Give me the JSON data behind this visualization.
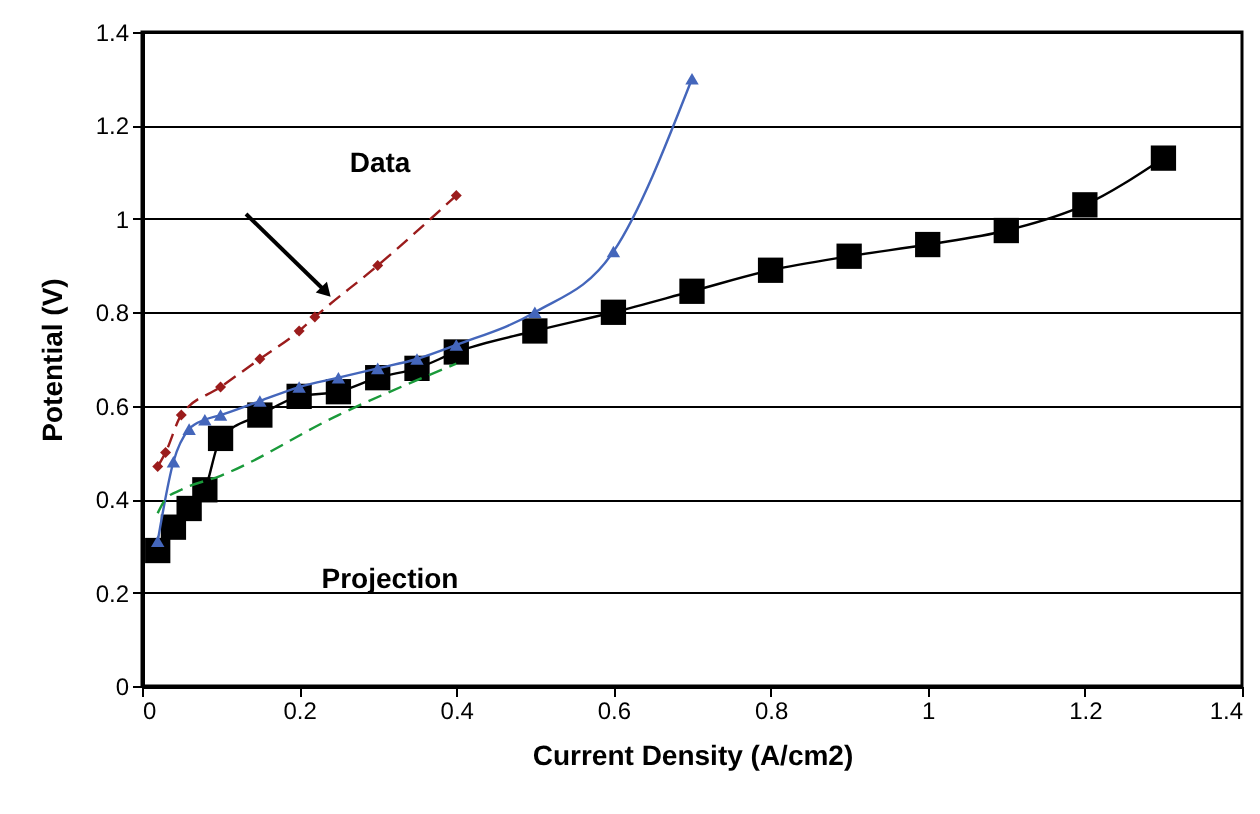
{
  "chart_data": {
    "type": "line",
    "xlabel": "Current Density (A/cm2)",
    "ylabel": "Potential (V)",
    "xlim": [
      0,
      1.4
    ],
    "xticks": [
      0,
      0.2,
      0.4,
      0.6,
      0.8,
      1,
      1.2,
      1.4
    ],
    "ylim": [
      0,
      1.4
    ],
    "yticks": [
      0,
      0.2,
      0.4,
      0.6,
      0.8,
      1,
      1.2,
      1.4
    ],
    "grid": "y",
    "series": [
      {
        "color": "#000000",
        "marker": "square",
        "line_style": "solid",
        "x": [
          0.02,
          0.04,
          0.06,
          0.08,
          0.1,
          0.15,
          0.2,
          0.25,
          0.3,
          0.35,
          0.4,
          0.5,
          0.6,
          0.7,
          0.8,
          0.9,
          1.0,
          1.1,
          1.2,
          1.3
        ],
        "values": [
          0.29,
          0.34,
          0.38,
          0.42,
          0.53,
          0.58,
          0.62,
          0.63,
          0.66,
          0.68,
          0.715,
          0.76,
          0.8,
          0.845,
          0.89,
          0.92,
          0.945,
          0.975,
          1.03,
          1.13
        ]
      },
      {
        "color": "#4466bb",
        "marker": "triangle",
        "line_style": "solid",
        "x": [
          0.02,
          0.04,
          0.06,
          0.08,
          0.1,
          0.15,
          0.2,
          0.25,
          0.3,
          0.35,
          0.4,
          0.5,
          0.6,
          0.7
        ],
        "values": [
          0.31,
          0.48,
          0.55,
          0.57,
          0.58,
          0.61,
          0.64,
          0.66,
          0.68,
          0.7,
          0.73,
          0.8,
          0.93,
          1.3
        ]
      },
      {
        "color": "#9b1c1c",
        "marker": "diamond",
        "line_style": "dashed",
        "x": [
          0.02,
          0.03,
          0.05,
          0.1,
          0.15,
          0.2,
          0.22,
          0.3,
          0.4
        ],
        "values": [
          0.47,
          0.5,
          0.58,
          0.64,
          0.7,
          0.76,
          0.79,
          0.9,
          1.05
        ]
      },
      {
        "color": "#1a9a3a",
        "marker": "none",
        "line_style": "dashed",
        "x": [
          0.02,
          0.03,
          0.05,
          0.1,
          0.25,
          0.4
        ],
        "values": [
          0.37,
          0.4,
          0.42,
          0.45,
          0.58,
          0.69
        ]
      }
    ],
    "annotations": [
      "Data",
      "Projection"
    ]
  }
}
